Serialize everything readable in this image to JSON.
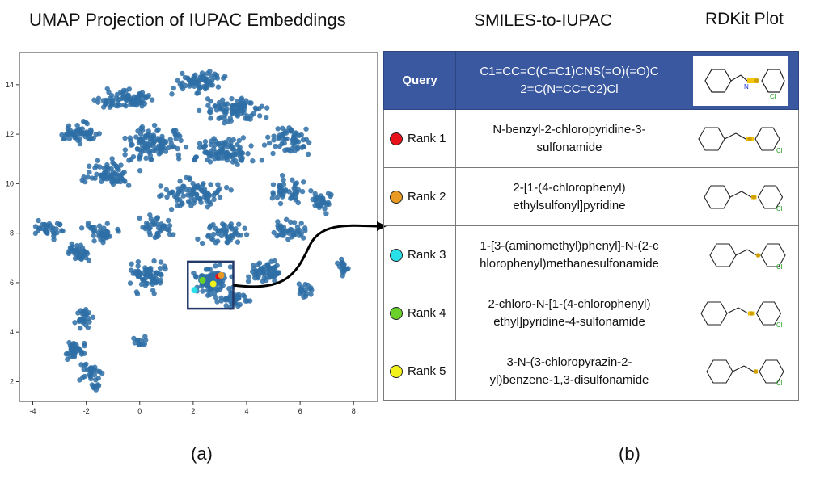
{
  "titles": {
    "umap": "UMAP Projection of IUPAC Embeddings",
    "table": "SMILES-to-IUPAC",
    "plot": "RDKit Plot"
  },
  "captions": {
    "a": "(a)",
    "b": "(b)"
  },
  "chart_data": {
    "type": "scatter",
    "title": "UMAP Projection of IUPAC Embeddings",
    "xlabel": "",
    "ylabel": "",
    "xlim": [
      -4.5,
      8.9
    ],
    "ylim": [
      1.2,
      15.3
    ],
    "xticks": [
      -4,
      -2,
      0,
      2,
      4,
      6,
      8
    ],
    "yticks": [
      2,
      4,
      6,
      8,
      10,
      12,
      14
    ],
    "point_color": "#2e6fa6",
    "highlight_region": {
      "x": [
        1.8,
        3.5
      ],
      "y": [
        4.95,
        6.85
      ]
    },
    "highlighted_points": [
      {
        "label": "Rank 1",
        "x": 2.95,
        "y": 6.25,
        "color": "#e8121b"
      },
      {
        "label": "Rank 2",
        "x": 3.05,
        "y": 6.3,
        "color": "#e89a24"
      },
      {
        "label": "Rank 3",
        "x": 2.05,
        "y": 5.7,
        "color": "#29e0e8"
      },
      {
        "label": "Rank 4",
        "x": 2.35,
        "y": 6.1,
        "color": "#6ad12a"
      },
      {
        "label": "Rank 5",
        "x": 2.75,
        "y": 5.95,
        "color": "#f2f21a"
      }
    ]
  },
  "table": {
    "query": {
      "label": "Query",
      "smiles_line1": "C1=CC=C(C=C1)CNS(=O)(=O)C",
      "smiles_line2": "2=C(N=CC=C2)Cl"
    },
    "rows": [
      {
        "rank": "Rank 1",
        "color": "#e8121b",
        "name1": "N-benzyl-2-chloropyridine-3-",
        "name2": "sulfonamide"
      },
      {
        "rank": "Rank 2",
        "color": "#e89a24",
        "name1": "2-[1-(4-chlorophenyl)",
        "name2": "ethylsulfonyl]pyridine"
      },
      {
        "rank": "Rank 3",
        "color": "#29e0e8",
        "name1": "1-[3-(aminomethyl)phenyl]-N-(2-c",
        "name2": "hlorophenyl)methanesulfonamide"
      },
      {
        "rank": "Rank 4",
        "color": "#6ad12a",
        "name1": "2-chloro-N-[1-(4-chlorophenyl)",
        "name2": "ethyl]pyridine-4-sulfonamide"
      },
      {
        "rank": "Rank 5",
        "color": "#f2f21a",
        "name1": "3-N-(3-chloropyrazin-2-",
        "name2": "yl)benzene-1,3-disulfonamide"
      }
    ]
  }
}
